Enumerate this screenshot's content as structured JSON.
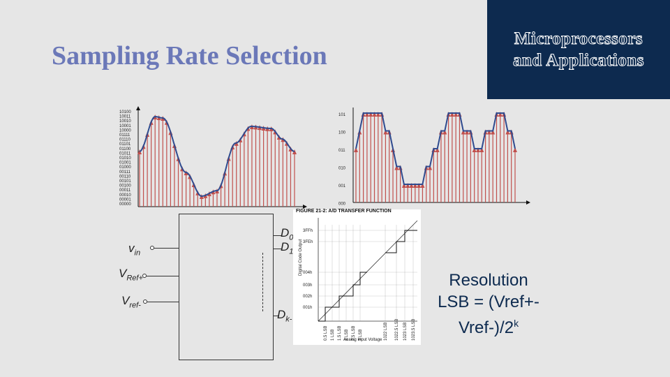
{
  "title": "Sampling Rate Selection",
  "banner": {
    "line1": "Microprocessors",
    "line2": "and Applications"
  },
  "colors": {
    "title": "#6b78b8",
    "banner_bg": "#0d2a4f",
    "background": "#e6e6e6",
    "signal": "#2f4b8f",
    "samples": "#c0504d"
  },
  "left_plot": {
    "y_labels": [
      "10100",
      "10011",
      "10010",
      "10001",
      "10000",
      "01111",
      "01110",
      "01101",
      "01100",
      "01011",
      "01010",
      "01001",
      "01000",
      "00111",
      "00110",
      "00101",
      "00100",
      "00011",
      "00010",
      "00001",
      "00000"
    ]
  },
  "right_plot": {
    "y_labels": [
      "101",
      "100",
      "011",
      "010",
      "001",
      "000"
    ]
  },
  "adc": {
    "inputs": {
      "vin": "v",
      "vin_sub": "in",
      "vrefp": "V",
      "vrefp_sub": "Ref+",
      "vrefm": "V",
      "vrefm_sub": "ref-"
    },
    "outputs": {
      "d0": "D",
      "d0_sub": "0",
      "d1": "D",
      "d1_sub": "1",
      "dk": "D",
      "dk_sub": "k-"
    }
  },
  "figure": {
    "caption": "FIGURE 21-2:        A/D TRANSFER FUNCTION",
    "y_axis_label": "Digital Code Output",
    "x_axis_label": "Analog Input Voltage",
    "y_ticks": [
      "3FFh",
      "3FEh",
      "004h",
      "003h",
      "002h",
      "001h"
    ],
    "x_ticks": [
      "0.5 LSB",
      "1 LSB",
      "1.5 LSB",
      "2 LSB",
      "2.5 LSB",
      "3 LSB",
      "1022 LSB",
      "1022.5 LSB",
      "1023 LSB",
      "1023.5 LSB"
    ]
  },
  "resolution": {
    "line1": "Resolution",
    "line2": "LSB = (Vref+-",
    "line3": "Vref-)/2",
    "exponent": "k"
  }
}
